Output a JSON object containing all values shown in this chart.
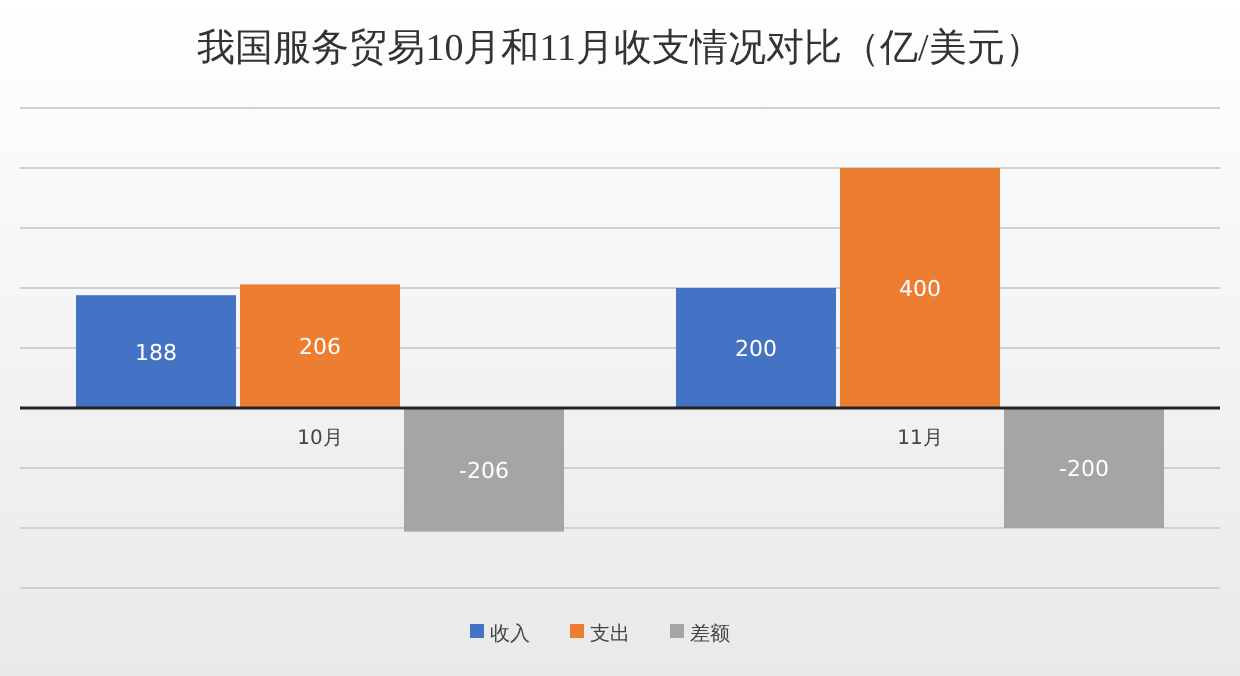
{
  "chart_data": {
    "type": "bar",
    "title": "我国服务贸易10月和11月收支情况对比（亿/美元）",
    "categories": [
      "10月",
      "11月"
    ],
    "series": [
      {
        "name": "收入",
        "color": "#4472c4",
        "values": [
          188,
          200
        ]
      },
      {
        "name": "支出",
        "color": "#ed7d31",
        "values": [
          206,
          400
        ]
      },
      {
        "name": "差额",
        "color": "#a5a5a5",
        "values": [
          -206,
          -200
        ]
      }
    ],
    "ylim": [
      -300,
      500
    ],
    "yticks": [
      {
        "value": -300,
        "label": null
      },
      {
        "value": -200,
        "label": null
      },
      {
        "value": -100,
        "label": null
      },
      {
        "value": 0,
        "label": null
      },
      {
        "value": 100,
        "label": null
      },
      {
        "value": 200,
        "label": null
      },
      {
        "value": 300,
        "label": null
      },
      {
        "value": 400,
        "label": null
      },
      {
        "value": 500,
        "label": null
      }
    ],
    "grid": "y",
    "data_labels": true,
    "legend": "bottom",
    "tick_labels": "x"
  }
}
